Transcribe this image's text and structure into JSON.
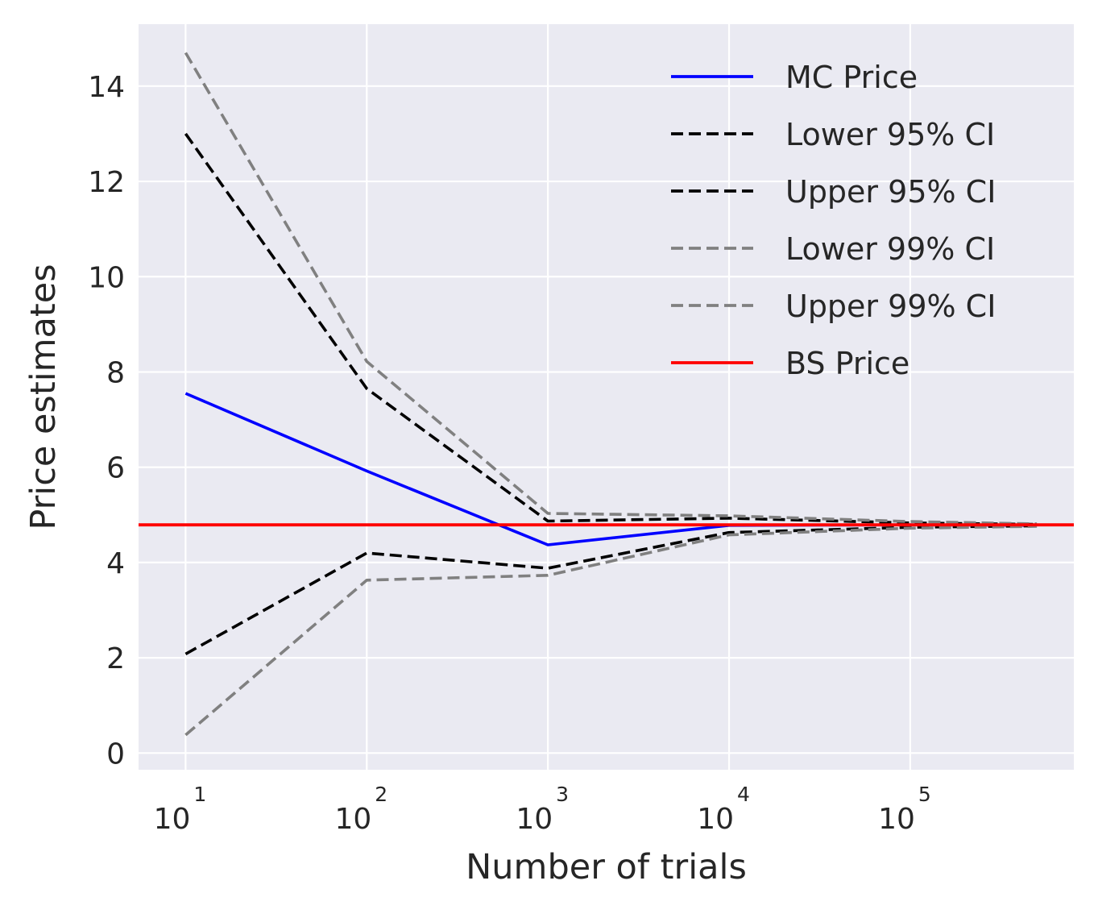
{
  "chart_data": {
    "type": "line",
    "title": "",
    "xlabel": "Number of trials",
    "ylabel": "Price estimates",
    "xscale": "log",
    "xlim": [
      5.5,
      800000
    ],
    "ylim": [
      -0.35,
      15.3
    ],
    "grid": true,
    "legend_position": "top-right",
    "x_ticks": [
      {
        "value": 10,
        "base": "10",
        "exp": "1"
      },
      {
        "value": 100,
        "base": "10",
        "exp": "2"
      },
      {
        "value": 1000,
        "base": "10",
        "exp": "3"
      },
      {
        "value": 10000,
        "base": "10",
        "exp": "4"
      },
      {
        "value": 100000,
        "base": "10",
        "exp": "5"
      }
    ],
    "y_ticks": [
      {
        "value": 0,
        "label": "0"
      },
      {
        "value": 2,
        "label": "2"
      },
      {
        "value": 4,
        "label": "4"
      },
      {
        "value": 6,
        "label": "6"
      },
      {
        "value": 8,
        "label": "8"
      },
      {
        "value": 10,
        "label": "10"
      },
      {
        "value": 12,
        "label": "12"
      },
      {
        "value": 14,
        "label": "14"
      }
    ],
    "x": [
      10,
      100,
      1000,
      10000,
      100000,
      500000
    ],
    "series": [
      {
        "name": "MC Price",
        "color": "#0000ff",
        "style": "solid",
        "values": [
          7.55,
          5.92,
          4.37,
          4.78,
          4.79,
          4.78
        ]
      },
      {
        "name": "Lower 95% CI",
        "color": "#000000",
        "style": "dashed",
        "values": [
          2.08,
          4.2,
          3.88,
          4.63,
          4.74,
          4.77
        ]
      },
      {
        "name": "Upper 95% CI",
        "color": "#000000",
        "style": "dashed",
        "values": [
          13.0,
          7.65,
          4.87,
          4.93,
          4.83,
          4.8
        ]
      },
      {
        "name": "Lower 99% CI",
        "color": "#808080",
        "style": "dashed",
        "values": [
          0.38,
          3.63,
          3.73,
          4.58,
          4.72,
          4.76
        ]
      },
      {
        "name": "Upper 99% CI",
        "color": "#808080",
        "style": "dashed",
        "values": [
          14.7,
          8.22,
          5.03,
          4.98,
          4.86,
          4.81
        ]
      }
    ],
    "reference_line": {
      "name": "BS Price",
      "color": "#ff0000",
      "style": "solid",
      "value": 4.79
    },
    "plot_background": "#eaeaf2",
    "grid_color": "#ffffff"
  }
}
